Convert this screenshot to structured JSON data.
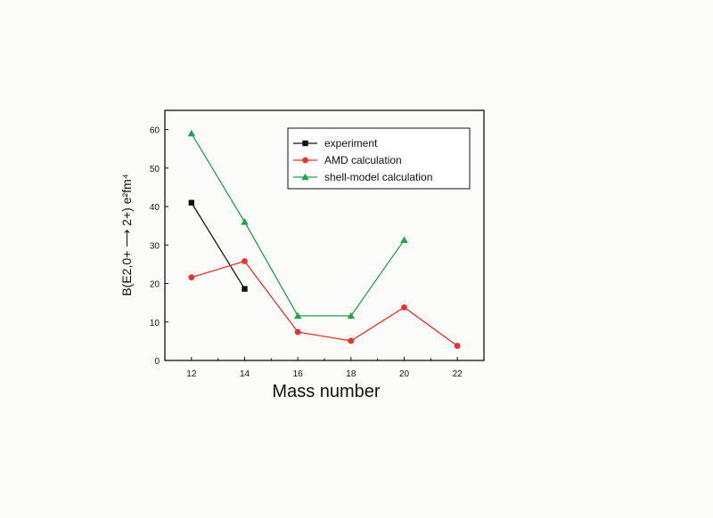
{
  "chart_data": {
    "type": "line",
    "xlabel": "Mass number",
    "ylabel": "B(E2,0+ ⟶ 2+) e²fm⁴",
    "xlim": [
      11,
      23
    ],
    "ylim": [
      0,
      65
    ],
    "x_ticks": [
      12,
      14,
      16,
      18,
      20,
      22
    ],
    "y_ticks": [
      0,
      10,
      20,
      30,
      40,
      50,
      60
    ],
    "grid": false,
    "legend_position": "top-right",
    "series": [
      {
        "name": "experiment",
        "marker": "square",
        "color": "#111111",
        "points": [
          {
            "x": 12,
            "y": 41
          },
          {
            "x": 14,
            "y": 18.6
          }
        ]
      },
      {
        "name": "AMD calculation",
        "marker": "circle",
        "color": "#e8332a",
        "points": [
          {
            "x": 12,
            "y": 21.6
          },
          {
            "x": 14,
            "y": 25.8
          },
          {
            "x": 16,
            "y": 7.4
          },
          {
            "x": 18,
            "y": 5.1
          },
          {
            "x": 20,
            "y": 13.8
          },
          {
            "x": 22,
            "y": 3.8
          }
        ]
      },
      {
        "name": "shell-model calculation",
        "marker": "triangle",
        "color": "#1fa34a",
        "points": [
          {
            "x": 12,
            "y": 59
          },
          {
            "x": 14,
            "y": 36
          },
          {
            "x": 16,
            "y": 11.6
          },
          {
            "x": 18,
            "y": 11.6
          },
          {
            "x": 20,
            "y": 31.3
          }
        ]
      }
    ]
  }
}
